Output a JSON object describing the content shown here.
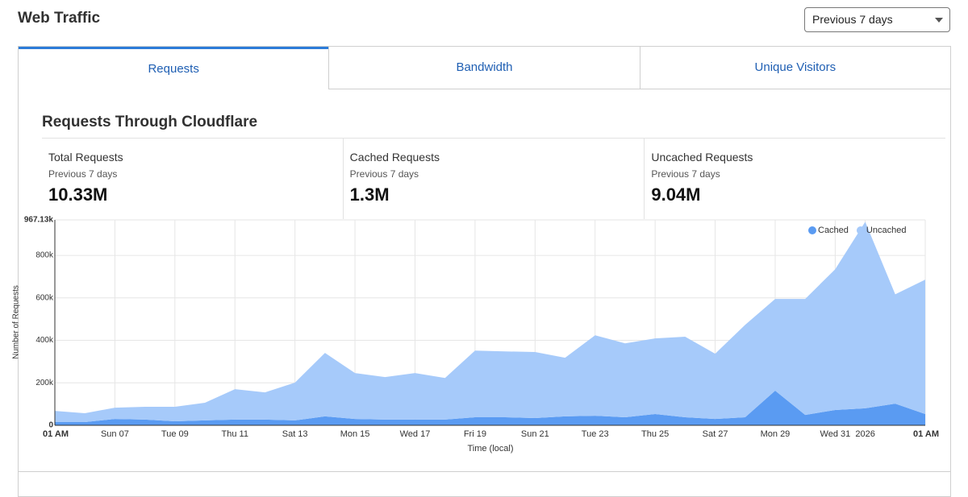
{
  "header": {
    "title": "Web Traffic",
    "range_select": "Previous 7 days"
  },
  "tabs": [
    "Requests",
    "Bandwidth",
    "Unique Visitors"
  ],
  "section_title": "Requests Through Cloudflare",
  "stats": [
    {
      "label": "Total Requests",
      "period": "Previous 7 days",
      "value": "10.33M"
    },
    {
      "label": "Cached Requests",
      "period": "Previous 7 days",
      "value": "1.3M"
    },
    {
      "label": "Uncached Requests",
      "period": "Previous 7 days",
      "value": "9.04M"
    }
  ],
  "chart_data": {
    "type": "area",
    "stacked": true,
    "x_label": "Time (local)",
    "y_label": "Number of Requests",
    "categories": [
      "01 AM",
      null,
      "Sun 07",
      null,
      "Tue 09",
      null,
      "Thu 11",
      null,
      "Sat 13",
      null,
      "Mon 15",
      null,
      "Wed 17",
      null,
      "Fri 19",
      null,
      "Sun 21",
      null,
      "Tue 23",
      null,
      "Thu 25",
      null,
      "Sat 27",
      null,
      "Mon 29",
      null,
      "Wed 31",
      "2026",
      null,
      "01 AM"
    ],
    "series": [
      {
        "name": "Cached",
        "color": "#5a9bf2",
        "values": [
          15000,
          15000,
          30000,
          27000,
          19000,
          23000,
          27000,
          27000,
          23000,
          42000,
          30000,
          27000,
          27000,
          27000,
          38000,
          38000,
          34000,
          42000,
          45000,
          38000,
          53000,
          38000,
          30000,
          38000,
          163000,
          49000,
          72000,
          80000,
          102000,
          53000
        ]
      },
      {
        "name": "Uncached",
        "color": "#a6cafa",
        "values": [
          53000,
          42000,
          53000,
          60000,
          68000,
          83000,
          143000,
          128000,
          178000,
          299000,
          216000,
          200000,
          219000,
          196000,
          314000,
          310000,
          311000,
          276000,
          379000,
          348000,
          356000,
          379000,
          307000,
          435000,
          432000,
          546000,
          663000,
          878000,
          515000,
          633000
        ]
      }
    ],
    "ylim": [
      0,
      967130
    ],
    "yticks": [
      0,
      {
        "value": 200000,
        "label": "200k"
      },
      {
        "value": 400000,
        "label": "400k"
      },
      {
        "value": 600000,
        "label": "600k"
      },
      {
        "value": 800000,
        "label": "800k"
      },
      {
        "value": 967130,
        "label": "967.13k"
      }
    ],
    "grid": true,
    "legend": "top-right"
  }
}
